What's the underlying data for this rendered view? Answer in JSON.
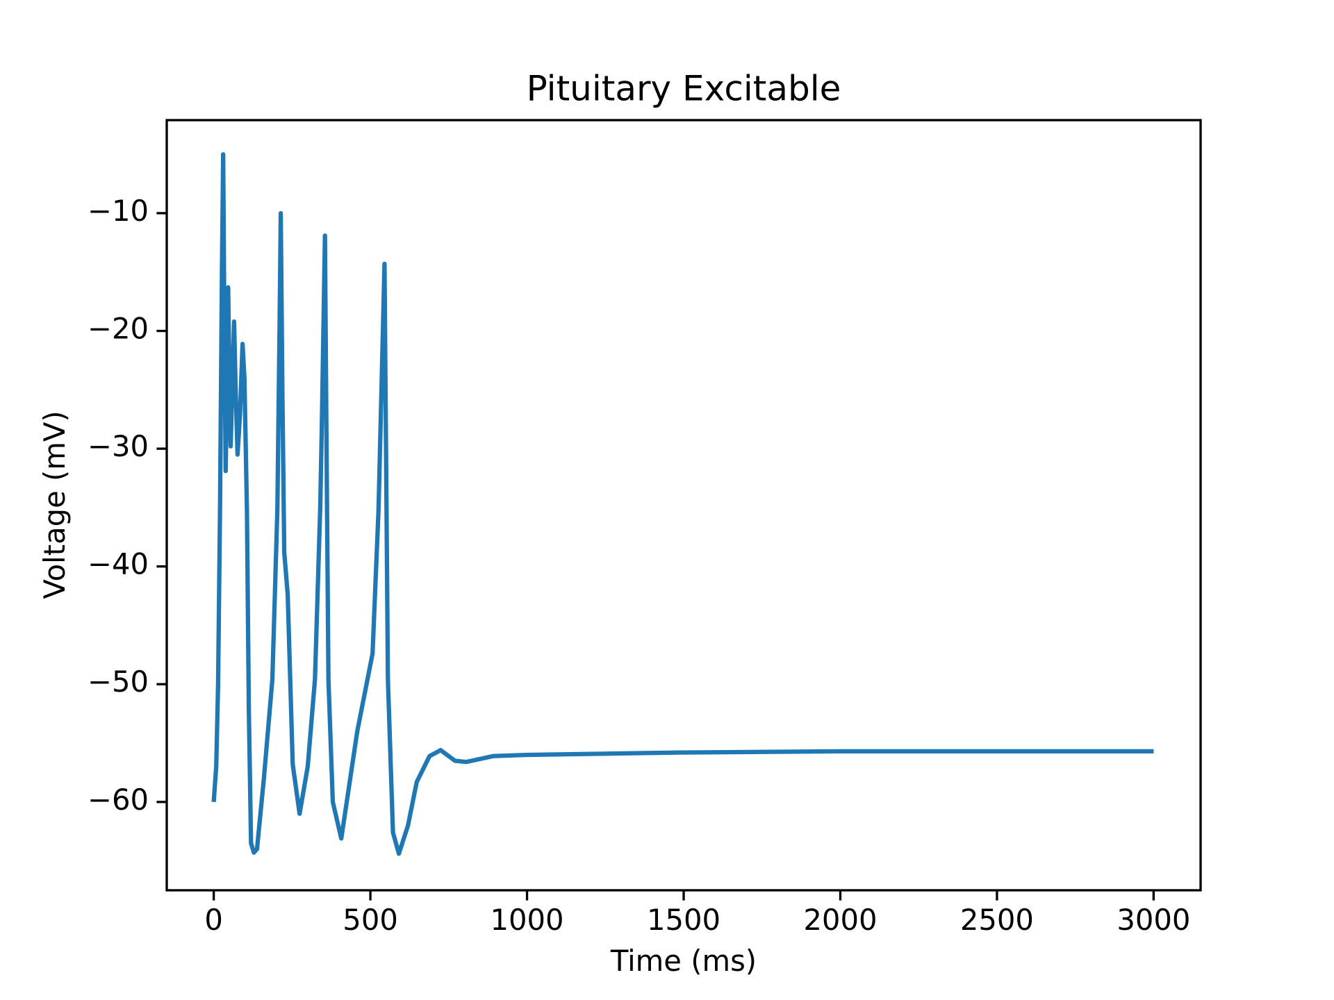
{
  "chart_data": {
    "type": "line",
    "title": "Pituitary Excitable",
    "x_label": "Time (ms)",
    "y_label": "Voltage (mV)",
    "x": [
      0,
      8,
      14,
      20,
      26,
      30,
      34,
      38,
      42,
      46,
      50,
      54,
      60,
      65,
      70,
      76,
      84,
      92,
      98,
      106,
      112,
      119,
      128,
      138,
      160,
      187,
      203,
      210,
      214,
      219,
      225,
      236,
      252,
      274,
      300,
      323,
      340,
      345,
      355,
      360,
      366,
      380,
      407,
      458,
      507,
      526,
      540,
      545,
      550,
      556,
      572,
      591,
      620,
      648,
      689,
      724,
      770,
      806,
      893,
      1001,
      1489,
      2000,
      3000
    ],
    "series": [
      {
        "color": "#1f77b4",
        "values": [
          -60,
          -57,
          -50,
          -35,
          -15,
          -5.0,
          -20,
          -31.9,
          -25,
          -16.3,
          -24,
          -29.8,
          -24,
          -19.2,
          -25,
          -30.5,
          -27,
          -21.1,
          -24,
          -35.2,
          -52,
          -63.5,
          -64.3,
          -64.0,
          -58,
          -49.6,
          -35.2,
          -20,
          -10.0,
          -25,
          -38.8,
          -42.4,
          -56.8,
          -61.0,
          -57,
          -49.6,
          -35,
          -28,
          -11.9,
          -30,
          -49.6,
          -60,
          -63.1,
          -54.0,
          -47.4,
          -35.2,
          -20,
          -14.3,
          -30,
          -49.6,
          -62.6,
          -64.4,
          -62,
          -58.3,
          -56.1,
          -55.6,
          -56.5,
          -56.6,
          -56.1,
          -56.0,
          -55.8,
          -55.7,
          -55.7
        ]
      }
    ],
    "xlim": [
      -150,
      3150
    ],
    "ylim": [
      -67.5,
      -2.1
    ],
    "xticks": [
      0,
      500,
      1000,
      1500,
      2000,
      2500,
      3000
    ],
    "yticks": [
      {
        "value": -60,
        "label": "−60"
      },
      {
        "value": -50,
        "label": "−50"
      },
      {
        "value": -40,
        "label": "−40"
      },
      {
        "value": -30,
        "label": "−30"
      },
      {
        "value": -20,
        "label": "−20"
      },
      {
        "value": -10,
        "label": "−10"
      }
    ]
  }
}
